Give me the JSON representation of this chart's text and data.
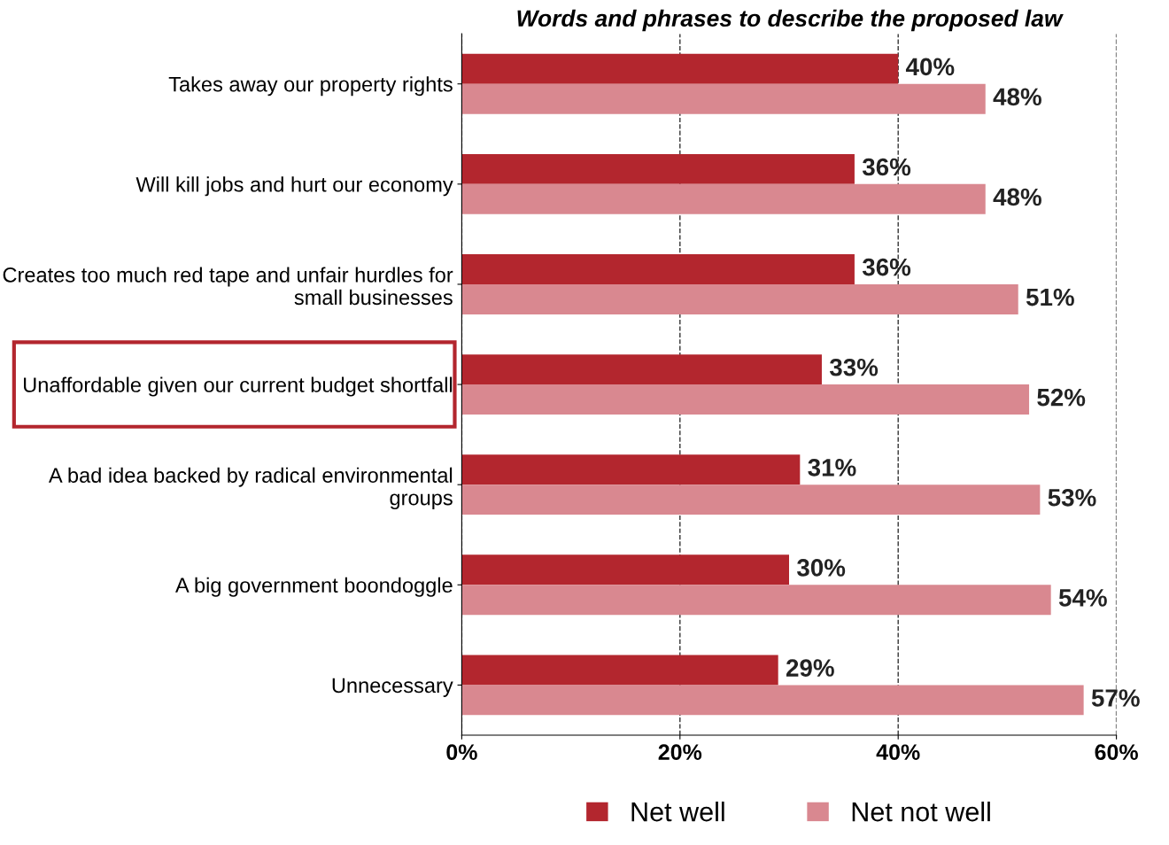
{
  "chart_data": {
    "type": "bar",
    "orientation": "horizontal",
    "title": "Words and phrases to describe the proposed law",
    "categories": [
      "Takes away our property rights",
      "Will kill jobs and hurt our economy",
      "Creates too much red tape and unfair hurdles for small businesses",
      "Unaffordable given our current budget shortfall",
      "A bad idea backed by radical environmental groups",
      "A big government boondoggle",
      "Unnecessary"
    ],
    "series": [
      {
        "name": "Net well",
        "color": "#b3262e",
        "values": [
          40,
          36,
          36,
          33,
          31,
          30,
          29
        ],
        "value_labels": [
          "40%",
          "36%",
          "36%",
          "33%",
          "31%",
          "30%",
          "29%"
        ]
      },
      {
        "name": "Net not well",
        "color": "#d98890",
        "values": [
          48,
          48,
          51,
          52,
          53,
          54,
          57
        ],
        "value_labels": [
          "48%",
          "48%",
          "51%",
          "52%",
          "53%",
          "54%",
          "57%"
        ]
      }
    ],
    "xlim": [
      0,
      60
    ],
    "xticks": [
      {
        "value": 0,
        "label": "0%"
      },
      {
        "value": 20,
        "label": "20%"
      },
      {
        "value": 40,
        "label": "40%"
      },
      {
        "value": 60,
        "label": "60%"
      }
    ],
    "grid": "x",
    "legend": "bottom"
  }
}
